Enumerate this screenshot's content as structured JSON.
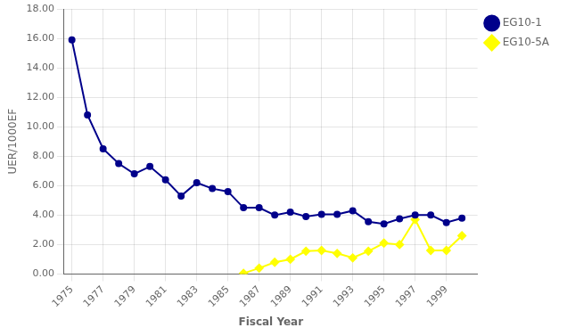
{
  "chart_data": {
    "type": "line",
    "xlabel": "Fiscal Year",
    "ylabel": "UER/1000EF",
    "xlim": [
      1974.5,
      2001.0
    ],
    "ylim": [
      0.0,
      18.0
    ],
    "xticks": [
      1975,
      1977,
      1979,
      1981,
      1983,
      1985,
      1987,
      1989,
      1991,
      1993,
      1995,
      1997,
      1999
    ],
    "yticks": [
      {
        "value": 0.0,
        "label": "0.00"
      },
      {
        "value": 2.0,
        "label": "2.00"
      },
      {
        "value": 4.0,
        "label": "4.00"
      },
      {
        "value": 6.0,
        "label": "6.00"
      },
      {
        "value": 8.0,
        "label": "8.00"
      },
      {
        "value": 10.0,
        "label": "10.00"
      },
      {
        "value": 12.0,
        "label": "12.00"
      },
      {
        "value": 14.0,
        "label": "14.00"
      },
      {
        "value": 16.0,
        "label": "16.00"
      },
      {
        "value": 18.0,
        "label": "18.00"
      }
    ],
    "grid": true,
    "legend": "right",
    "series": [
      {
        "name": "EG10-1",
        "color": "#00008B",
        "marker": "circle",
        "x": [
          1975,
          1976,
          1977,
          1978,
          1979,
          1980,
          1981,
          1982,
          1983,
          1984,
          1985,
          1986,
          1987,
          1988,
          1989,
          1990,
          1991,
          1992,
          1993,
          1994,
          1995,
          1996,
          1997,
          1998,
          1999,
          2000
        ],
        "values": [
          15.9,
          10.8,
          8.5,
          7.5,
          6.8,
          7.3,
          6.4,
          5.3,
          6.2,
          5.8,
          5.6,
          4.5,
          4.5,
          4.0,
          4.2,
          3.9,
          4.05,
          4.05,
          4.3,
          3.55,
          3.4,
          3.75,
          4.0,
          4.0,
          3.5,
          3.8
        ]
      },
      {
        "name": "EG10-5A",
        "color": "#FFFF00",
        "marker": "diamond",
        "x": [
          1986,
          1987,
          1988,
          1989,
          1990,
          1991,
          1992,
          1993,
          1994,
          1995,
          1996,
          1997,
          1998,
          1999,
          2000
        ],
        "values": [
          0.05,
          0.4,
          0.8,
          1.0,
          1.55,
          1.6,
          1.4,
          1.1,
          1.55,
          2.1,
          2.0,
          3.7,
          1.6,
          1.6,
          2.6
        ]
      }
    ]
  }
}
